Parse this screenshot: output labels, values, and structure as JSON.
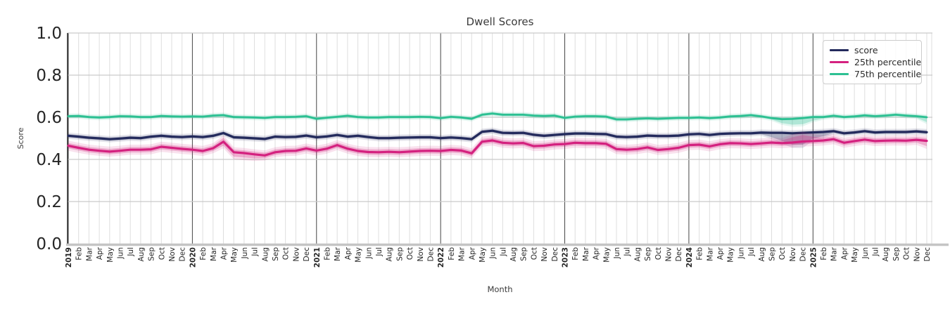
{
  "chart_data": {
    "type": "line",
    "title": "Dwell Scores",
    "xlabel": "Month",
    "ylabel": "Score",
    "ylim": [
      0.0,
      1.0
    ],
    "y_tick_labels": [
      "0.0",
      "0.2",
      "0.4",
      "0.6",
      "0.8",
      "1.0"
    ],
    "grid": true,
    "legend_position": "upper right",
    "x_tick_labels": [
      "2019",
      "Feb",
      "Mar",
      "Apr",
      "May",
      "Jun",
      "Jul",
      "Aug",
      "Sep",
      "Oct",
      "Nov",
      "Dec",
      "2020",
      "Feb",
      "Mar",
      "Apr",
      "May",
      "Jun",
      "Jul",
      "Aug",
      "Sep",
      "Oct",
      "Nov",
      "Dec",
      "2021",
      "Feb",
      "Mar",
      "Apr",
      "May",
      "Jun",
      "Jul",
      "Aug",
      "Sep",
      "Oct",
      "Nov",
      "Dec",
      "2022",
      "Feb",
      "Mar",
      "Apr",
      "May",
      "Jun",
      "Jul",
      "Aug",
      "Sep",
      "Oct",
      "Nov",
      "Dec",
      "2023",
      "Feb",
      "Mar",
      "Apr",
      "May",
      "Jun",
      "Jul",
      "Aug",
      "Sep",
      "Oct",
      "Nov",
      "Dec",
      "2024",
      "Feb",
      "Mar",
      "Apr",
      "May",
      "Jun",
      "Jul",
      "Aug",
      "Sep",
      "Oct",
      "Nov",
      "Dec",
      "2025",
      "Feb",
      "Mar",
      "Apr",
      "May",
      "Jun",
      "Jul",
      "Aug",
      "Sep",
      "Oct",
      "Nov",
      "Dec"
    ],
    "series": [
      {
        "name": "score",
        "color": "#232a5c",
        "line_width": 3.2,
        "band": 0.008,
        "band_outer": 0.015,
        "lo_extra": {
          "68": 0.012,
          "69": 0.03,
          "70": 0.045,
          "71": 0.048,
          "72": 0.02,
          "73": 0.012
        },
        "hi_extra": {},
        "values": [
          0.512,
          0.508,
          0.503,
          0.5,
          0.496,
          0.499,
          0.503,
          0.501,
          0.508,
          0.512,
          0.508,
          0.506,
          0.509,
          0.506,
          0.512,
          0.525,
          0.505,
          0.503,
          0.5,
          0.497,
          0.508,
          0.506,
          0.507,
          0.513,
          0.505,
          0.509,
          0.516,
          0.508,
          0.512,
          0.506,
          0.501,
          0.501,
          0.503,
          0.504,
          0.505,
          0.505,
          0.501,
          0.504,
          0.501,
          0.496,
          0.531,
          0.536,
          0.526,
          0.525,
          0.526,
          0.517,
          0.512,
          0.516,
          0.52,
          0.523,
          0.523,
          0.521,
          0.52,
          0.508,
          0.506,
          0.508,
          0.513,
          0.511,
          0.511,
          0.513,
          0.519,
          0.521,
          0.516,
          0.521,
          0.523,
          0.524,
          0.524,
          0.527,
          0.526,
          0.526,
          0.524,
          0.526,
          0.528,
          0.53,
          0.534,
          0.524,
          0.528,
          0.534,
          0.528,
          0.53,
          0.53,
          0.53,
          0.533,
          0.529
        ]
      },
      {
        "name": "25th percentile",
        "color": "#d4217f",
        "line_width": 3.2,
        "band": 0.013,
        "band_outer": 0.024,
        "lo_extra": {
          "15": 0.006,
          "16": 0.008,
          "17": 0.008,
          "18": 0.006,
          "83": 0.012
        },
        "hi_extra": {
          "15": 0.005,
          "70": 0.012,
          "71": 0.018,
          "72": 0.008
        },
        "values": [
          0.465,
          0.455,
          0.446,
          0.441,
          0.437,
          0.441,
          0.446,
          0.446,
          0.448,
          0.46,
          0.455,
          0.45,
          0.446,
          0.44,
          0.453,
          0.484,
          0.434,
          0.43,
          0.424,
          0.419,
          0.434,
          0.44,
          0.441,
          0.452,
          0.442,
          0.451,
          0.468,
          0.451,
          0.44,
          0.435,
          0.434,
          0.436,
          0.434,
          0.437,
          0.44,
          0.441,
          0.44,
          0.445,
          0.442,
          0.429,
          0.484,
          0.49,
          0.479,
          0.476,
          0.478,
          0.463,
          0.465,
          0.471,
          0.473,
          0.479,
          0.477,
          0.477,
          0.474,
          0.449,
          0.446,
          0.449,
          0.457,
          0.445,
          0.449,
          0.455,
          0.468,
          0.47,
          0.462,
          0.472,
          0.477,
          0.476,
          0.473,
          0.476,
          0.48,
          0.477,
          0.48,
          0.485,
          0.487,
          0.49,
          0.496,
          0.479,
          0.487,
          0.494,
          0.487,
          0.489,
          0.49,
          0.489,
          0.493,
          0.488
        ]
      },
      {
        "name": "75th percentile",
        "color": "#2cc092",
        "line_width": 2.8,
        "band": 0.007,
        "band_outer": 0.013,
        "lo_extra": {
          "69": 0.012,
          "70": 0.02,
          "71": 0.022,
          "72": 0.01,
          "83": 0.016
        },
        "hi_extra": {},
        "values": [
          0.605,
          0.606,
          0.601,
          0.599,
          0.601,
          0.605,
          0.604,
          0.601,
          0.601,
          0.606,
          0.604,
          0.603,
          0.604,
          0.603,
          0.608,
          0.61,
          0.601,
          0.6,
          0.599,
          0.597,
          0.601,
          0.601,
          0.602,
          0.605,
          0.593,
          0.598,
          0.602,
          0.607,
          0.601,
          0.599,
          0.599,
          0.601,
          0.601,
          0.601,
          0.602,
          0.601,
          0.596,
          0.602,
          0.599,
          0.593,
          0.612,
          0.618,
          0.612,
          0.612,
          0.612,
          0.608,
          0.606,
          0.608,
          0.597,
          0.603,
          0.605,
          0.605,
          0.603,
          0.59,
          0.59,
          0.593,
          0.595,
          0.593,
          0.595,
          0.597,
          0.597,
          0.599,
          0.596,
          0.599,
          0.604,
          0.606,
          0.61,
          0.604,
          0.596,
          0.591,
          0.592,
          0.596,
          0.601,
          0.601,
          0.607,
          0.601,
          0.604,
          0.609,
          0.605,
          0.608,
          0.612,
          0.608,
          0.605,
          0.6
        ]
      }
    ],
    "colors": {
      "grid_minor": "#dedede",
      "grid_major_h": "#c9c9c9",
      "grid_year": "#454545",
      "spine_left": "#2a2a2a",
      "spine_bottom": "#c4c4c4",
      "text_tick": "#262626",
      "text_title": "#3a3a3a"
    }
  }
}
